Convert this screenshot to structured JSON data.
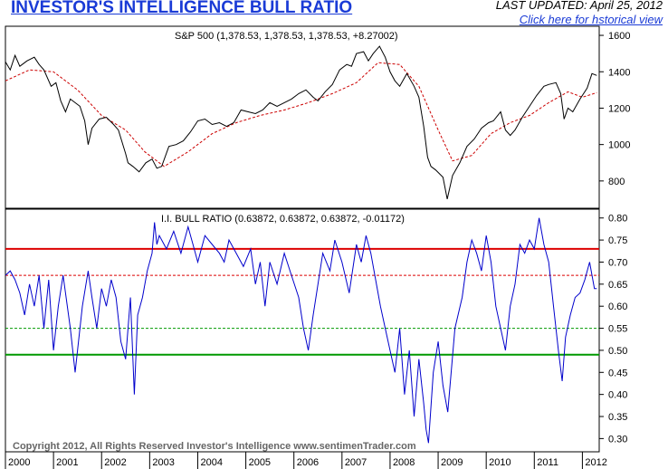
{
  "header": {
    "title": "INVESTOR'S INTELLIGENCE BULL RATIO",
    "last_updated": "LAST UPDATED:  April 25, 2012",
    "historical_link": "Click here for hstorical view"
  },
  "footer": {
    "copyright": "Copyright 2012, All Rights Reserved  Investor's Intelligence  www.sentimenTrader.com"
  },
  "colors": {
    "price_line": "#000000",
    "moving_average": "#cc0000",
    "bull_ratio_line": "#0000cc",
    "upper_band": "#dd0000",
    "lower_band": "#009900",
    "grid": "#000000"
  },
  "chart_data": [
    {
      "type": "line",
      "title": "S&P 500 (1,378.53, 1,378.53, 1,378.53, +8.27002)",
      "y_ticks": [
        "1600",
        "1400",
        "1200",
        "1000",
        "800"
      ],
      "ylim": [
        650,
        1650
      ],
      "x_labels": [
        "2000",
        "2001",
        "2002",
        "2003",
        "2004",
        "2005",
        "2006",
        "2007",
        "2008",
        "2009",
        "2010",
        "2011",
        "2012"
      ],
      "xlim": [
        2000.0,
        2012.35
      ],
      "series": [
        {
          "role": "price",
          "x": [
            2000.0,
            2000.1,
            2000.2,
            2000.3,
            2000.45,
            2000.6,
            2000.7,
            2000.8,
            2000.95,
            2001.05,
            2001.15,
            2001.25,
            2001.35,
            2001.45,
            2001.55,
            2001.65,
            2001.72,
            2001.8,
            2001.95,
            2002.1,
            2002.25,
            2002.35,
            2002.5,
            2002.55,
            2002.65,
            2002.78,
            2002.92,
            2003.05,
            2003.15,
            2003.25,
            2003.4,
            2003.55,
            2003.7,
            2003.85,
            2004.0,
            2004.15,
            2004.3,
            2004.45,
            2004.6,
            2004.75,
            2004.9,
            2005.05,
            2005.2,
            2005.35,
            2005.5,
            2005.65,
            2005.8,
            2005.95,
            2006.1,
            2006.25,
            2006.4,
            2006.5,
            2006.65,
            2006.8,
            2006.95,
            2007.1,
            2007.2,
            2007.3,
            2007.45,
            2007.55,
            2007.65,
            2007.78,
            2007.9,
            2008.0,
            2008.1,
            2008.2,
            2008.35,
            2008.5,
            2008.6,
            2008.7,
            2008.78,
            2008.85,
            2008.95,
            2009.1,
            2009.19,
            2009.3,
            2009.45,
            2009.6,
            2009.75,
            2009.9,
            2010.05,
            2010.15,
            2010.3,
            2010.4,
            2010.5,
            2010.6,
            2010.75,
            2010.9,
            2011.05,
            2011.2,
            2011.3,
            2011.45,
            2011.55,
            2011.62,
            2011.7,
            2011.8,
            2011.95,
            2012.1,
            2012.2,
            2012.3
          ],
          "y": [
            1455,
            1410,
            1490,
            1430,
            1460,
            1480,
            1440,
            1410,
            1320,
            1340,
            1240,
            1180,
            1250,
            1230,
            1210,
            1130,
            1000,
            1090,
            1140,
            1150,
            1110,
            1080,
            950,
            900,
            880,
            850,
            900,
            920,
            870,
            880,
            990,
            1000,
            1020,
            1070,
            1130,
            1140,
            1110,
            1120,
            1100,
            1120,
            1190,
            1180,
            1170,
            1190,
            1230,
            1210,
            1230,
            1250,
            1280,
            1300,
            1260,
            1240,
            1290,
            1330,
            1410,
            1440,
            1430,
            1500,
            1510,
            1460,
            1500,
            1540,
            1480,
            1400,
            1350,
            1320,
            1390,
            1320,
            1260,
            1100,
            930,
            880,
            860,
            820,
            700,
            830,
            900,
            990,
            1030,
            1090,
            1120,
            1130,
            1180,
            1080,
            1050,
            1080,
            1150,
            1210,
            1270,
            1320,
            1330,
            1340,
            1280,
            1140,
            1200,
            1180,
            1250,
            1310,
            1390,
            1380
          ]
        },
        {
          "role": "moving-average",
          "x": [
            2000.0,
            2000.5,
            2001.0,
            2001.5,
            2002.0,
            2002.5,
            2002.9,
            2003.3,
            2003.8,
            2004.3,
            2004.8,
            2005.3,
            2005.8,
            2006.3,
            2006.8,
            2007.3,
            2007.75,
            2008.2,
            2008.6,
            2009.0,
            2009.3,
            2009.7,
            2010.1,
            2010.5,
            2010.9,
            2011.3,
            2011.7,
            2012.0,
            2012.3
          ],
          "y": [
            1350,
            1410,
            1400,
            1300,
            1160,
            1080,
            960,
            880,
            960,
            1060,
            1120,
            1160,
            1190,
            1230,
            1280,
            1340,
            1450,
            1440,
            1320,
            1080,
            910,
            940,
            1060,
            1120,
            1160,
            1230,
            1290,
            1260,
            1285
          ]
        }
      ]
    },
    {
      "type": "line",
      "title": "I.I. BULL RATIO (0.63872, 0.63872, 0.63872, -0.01172)",
      "y_ticks": [
        "0.80",
        "0.75",
        "0.70",
        "0.65",
        "0.60",
        "0.55",
        "0.50",
        "0.45",
        "0.40",
        "0.35",
        "0.30"
      ],
      "ylim": [
        0.27,
        0.82
      ],
      "x_labels": [
        "2000",
        "2001",
        "2002",
        "2003",
        "2004",
        "2005",
        "2006",
        "2007",
        "2008",
        "2009",
        "2010",
        "2011",
        "2012"
      ],
      "xlim": [
        2000.0,
        2012.35
      ],
      "reference_lines": [
        {
          "value": 0.73,
          "style": "solid",
          "color_key": "upper_band"
        },
        {
          "value": 0.67,
          "style": "dashed",
          "color_key": "upper_band"
        },
        {
          "value": 0.55,
          "style": "dashed",
          "color_key": "lower_band"
        },
        {
          "value": 0.49,
          "style": "solid",
          "color_key": "lower_band"
        }
      ],
      "series": [
        {
          "role": "bull-ratio",
          "x": [
            2000.0,
            2000.1,
            2000.2,
            2000.3,
            2000.4,
            2000.5,
            2000.6,
            2000.7,
            2000.8,
            2000.9,
            2001.0,
            2001.1,
            2001.2,
            2001.35,
            2001.45,
            2001.6,
            2001.72,
            2001.8,
            2001.9,
            2002.0,
            2002.1,
            2002.2,
            2002.3,
            2002.4,
            2002.5,
            2002.6,
            2002.68,
            2002.75,
            2002.85,
            2002.95,
            2003.05,
            2003.1,
            2003.15,
            2003.2,
            2003.35,
            2003.5,
            2003.65,
            2003.8,
            2003.9,
            2004.0,
            2004.15,
            2004.3,
            2004.45,
            2004.55,
            2004.65,
            2004.8,
            2004.95,
            2005.1,
            2005.2,
            2005.3,
            2005.4,
            2005.5,
            2005.65,
            2005.8,
            2005.95,
            2006.1,
            2006.2,
            2006.3,
            2006.4,
            2006.5,
            2006.6,
            2006.75,
            2006.85,
            2007.0,
            2007.15,
            2007.3,
            2007.4,
            2007.5,
            2007.6,
            2007.7,
            2007.8,
            2007.9,
            2008.0,
            2008.1,
            2008.2,
            2008.3,
            2008.4,
            2008.5,
            2008.6,
            2008.7,
            2008.75,
            2008.8,
            2008.9,
            2009.0,
            2009.1,
            2009.2,
            2009.35,
            2009.5,
            2009.6,
            2009.7,
            2009.8,
            2009.9,
            2010.0,
            2010.1,
            2010.2,
            2010.3,
            2010.4,
            2010.5,
            2010.6,
            2010.7,
            2010.8,
            2010.9,
            2011.0,
            2011.1,
            2011.2,
            2011.3,
            2011.4,
            2011.5,
            2011.58,
            2011.65,
            2011.75,
            2011.85,
            2011.95,
            2012.05,
            2012.15,
            2012.25,
            2012.3
          ],
          "y": [
            0.67,
            0.68,
            0.66,
            0.63,
            0.58,
            0.65,
            0.6,
            0.67,
            0.55,
            0.66,
            0.5,
            0.6,
            0.67,
            0.55,
            0.45,
            0.6,
            0.68,
            0.62,
            0.55,
            0.64,
            0.6,
            0.66,
            0.62,
            0.52,
            0.48,
            0.62,
            0.4,
            0.58,
            0.62,
            0.68,
            0.72,
            0.79,
            0.74,
            0.76,
            0.73,
            0.77,
            0.72,
            0.78,
            0.74,
            0.7,
            0.76,
            0.74,
            0.72,
            0.7,
            0.75,
            0.72,
            0.69,
            0.73,
            0.65,
            0.7,
            0.6,
            0.7,
            0.65,
            0.72,
            0.67,
            0.62,
            0.55,
            0.5,
            0.58,
            0.65,
            0.72,
            0.68,
            0.75,
            0.7,
            0.63,
            0.74,
            0.7,
            0.76,
            0.72,
            0.66,
            0.6,
            0.55,
            0.5,
            0.45,
            0.55,
            0.4,
            0.5,
            0.35,
            0.48,
            0.38,
            0.32,
            0.29,
            0.45,
            0.52,
            0.42,
            0.36,
            0.55,
            0.62,
            0.7,
            0.75,
            0.72,
            0.68,
            0.76,
            0.7,
            0.6,
            0.55,
            0.5,
            0.6,
            0.65,
            0.74,
            0.72,
            0.75,
            0.73,
            0.8,
            0.74,
            0.7,
            0.6,
            0.5,
            0.43,
            0.53,
            0.58,
            0.62,
            0.63,
            0.66,
            0.7,
            0.64,
            0.64
          ]
        }
      ]
    }
  ]
}
